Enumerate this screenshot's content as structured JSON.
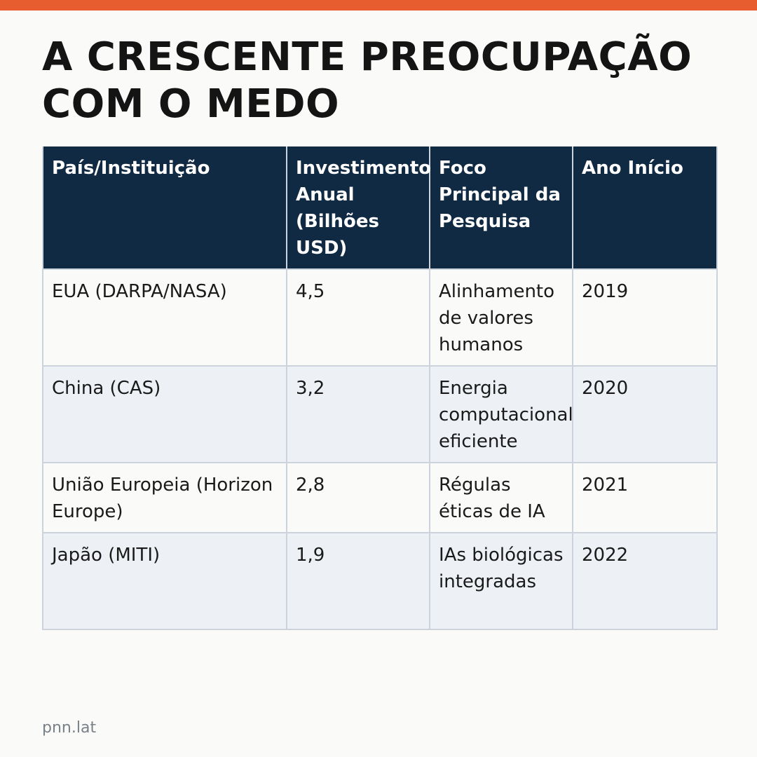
{
  "accent_color": "#e85d2f",
  "header_color": "#112a44",
  "title": "A CRESCENTE PREOCUPAÇÃO COM O MEDO",
  "table": {
    "headers": [
      "País/Instituição",
      "Investimento Anual (Bilhões USD)",
      "Foco Principal da Pesquisa",
      "Ano Início"
    ],
    "rows": [
      [
        "EUA (DARPA/NASA)",
        "4,5",
        "Alinhamento de valores humanos",
        "2019"
      ],
      [
        "China (CAS)",
        "3,2",
        "Energia computacional eficiente",
        "2020"
      ],
      [
        "União Europeia (Horizon Europe)",
        "2,8",
        "Régulas éticas de IA",
        "2021"
      ],
      [
        "Japão (MITI)",
        "1,9",
        "IAs biológicas integradas",
        "2022"
      ]
    ]
  },
  "footer": {
    "source": "pnn.lat"
  }
}
